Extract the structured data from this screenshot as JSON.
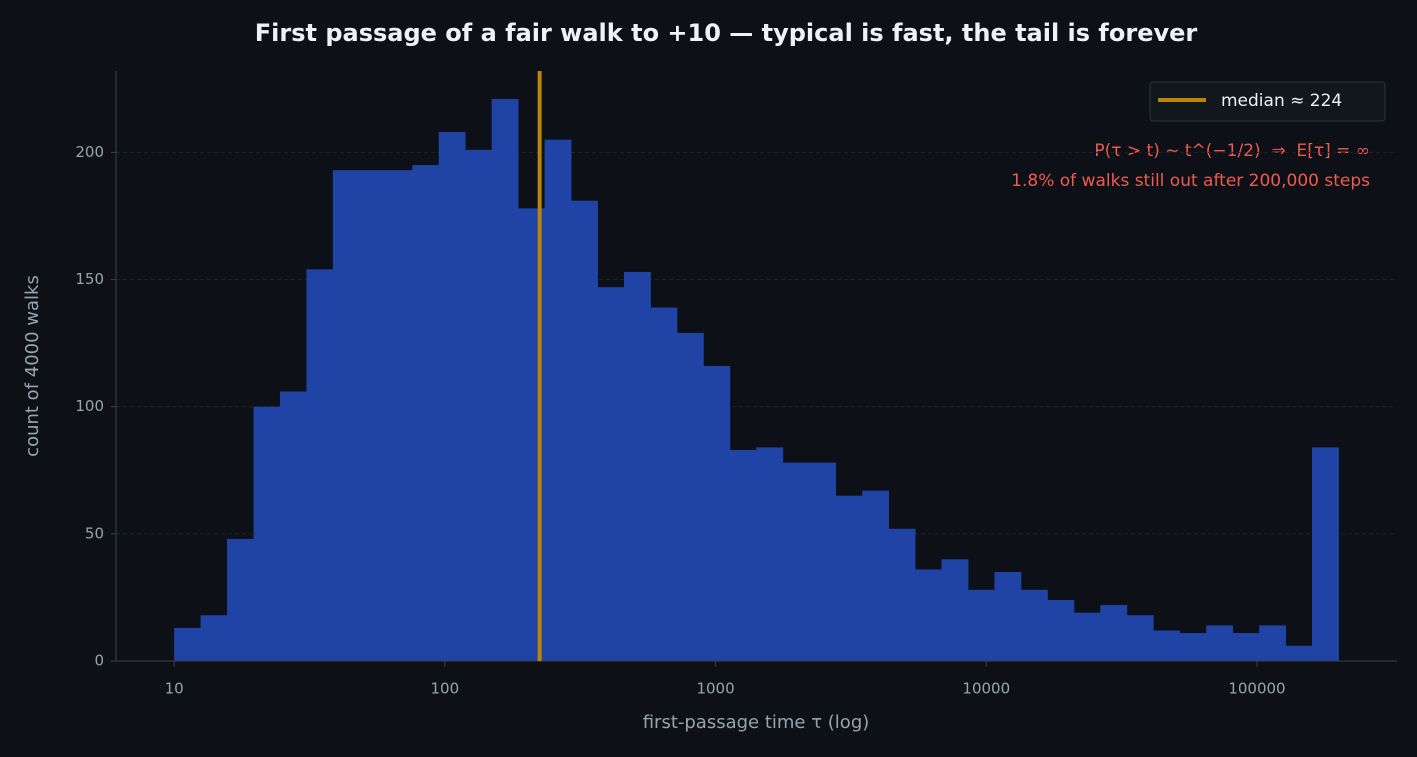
{
  "chart_data": {
    "type": "histogram",
    "title": "First passage of a fair walk to +10 — typical is fast, the tail is forever",
    "xlabel": "first-passage time τ (log)",
    "ylabel": "count of 4000 walks",
    "xscale": "log",
    "bins": [
      10,
      12.52,
      15.68,
      19.65,
      24.6,
      30.81,
      38.59,
      48.33,
      60.53,
      75.81,
      94.95,
      118.9,
      148.9,
      186.5,
      233.6,
      292.6,
      366.5,
      459.0,
      574.9,
      720.0,
      901.8,
      1129,
      1414,
      1771,
      2218,
      2778,
      3480,
      4358,
      5458,
      6836,
      8562,
      10722,
      13430,
      16820,
      21066,
      26386,
      33047,
      41390,
      51840,
      64928,
      81320,
      101850,
      127560,
      159760,
      200000
    ],
    "counts": [
      13,
      18,
      48,
      100,
      106,
      154,
      193,
      193,
      193,
      195,
      208,
      201,
      221,
      178,
      205,
      181,
      147,
      153,
      139,
      129,
      116,
      83,
      84,
      78,
      78,
      65,
      67,
      52,
      36,
      40,
      28,
      35,
      28,
      24,
      19,
      22,
      18,
      12,
      11,
      14,
      11,
      14,
      6,
      84
    ],
    "color": "#1f44a6",
    "median": {
      "value": 224,
      "label": "median ≈ 224",
      "color": "#b8860b"
    },
    "legend": "upper right",
    "annotations": [
      "P(τ > t) ~ t^(−1/2)  ⇒  E[τ] = ∞",
      "1.8% of walks still out after 200,000 steps"
    ],
    "xlim": [
      6.1,
      329000
    ],
    "xticks": [
      10,
      100,
      1000,
      10000,
      100000
    ],
    "ylim": [
      0,
      232
    ],
    "yticks": [
      0,
      50,
      100,
      150,
      200
    ],
    "grid": true
  }
}
